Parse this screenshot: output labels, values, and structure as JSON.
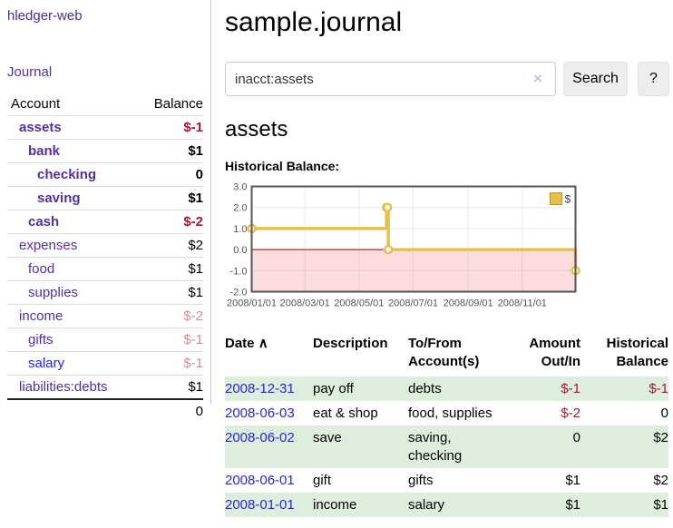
{
  "sidebar": {
    "brand": "hledger-web",
    "nav": {
      "journal": "Journal"
    },
    "accounts_table": {
      "header": {
        "account": "Account",
        "balance": "Balance"
      },
      "rows": [
        {
          "name": "assets",
          "balance": "$-1"
        },
        {
          "name": "bank",
          "balance": "$1"
        },
        {
          "name": "checking",
          "balance": "0"
        },
        {
          "name": "saving",
          "balance": "$1"
        },
        {
          "name": "cash",
          "balance": "$-2"
        },
        {
          "name": "expenses",
          "balance": "$2"
        },
        {
          "name": "food",
          "balance": "$1"
        },
        {
          "name": "supplies",
          "balance": "$1"
        },
        {
          "name": "income",
          "balance": "$-2"
        },
        {
          "name": "gifts",
          "balance": "$-1"
        },
        {
          "name": "salary",
          "balance": "$-1"
        },
        {
          "name": "liabilities:debts",
          "balance": "$1"
        }
      ],
      "total": "0"
    }
  },
  "main": {
    "title": "sample.journal",
    "search": {
      "query": "inacct:assets",
      "clear_icon": "×",
      "search_button": "Search",
      "help_button": "?"
    },
    "account_heading": "assets",
    "chart_title": "Historical Balance:"
  },
  "chart_data": {
    "type": "line",
    "step": true,
    "title": "Historical Balance",
    "series": [
      {
        "name": "$",
        "color": "#e7c04a",
        "points": [
          {
            "date": "2008-01-01",
            "day": 0,
            "value": 1
          },
          {
            "date": "2008-06-01",
            "day": 152,
            "value": 2
          },
          {
            "date": "2008-06-02",
            "day": 153,
            "value": 2
          },
          {
            "date": "2008-06-03",
            "day": 154,
            "value": 0
          },
          {
            "date": "2008-12-31",
            "day": 365,
            "value": -1
          }
        ]
      }
    ],
    "x_axis": {
      "range_days": [
        0,
        365
      ],
      "ticks": [
        {
          "day": 0,
          "label": "2008/01/01"
        },
        {
          "day": 60,
          "label": "2008/03/01"
        },
        {
          "day": 121,
          "label": "2008/05/01"
        },
        {
          "day": 182,
          "label": "2008/07/01"
        },
        {
          "day": 244,
          "label": "2008/09/01"
        },
        {
          "day": 305,
          "label": "2008/11/01"
        }
      ]
    },
    "y_axis": {
      "min": -2,
      "max": 3,
      "ticks": [
        {
          "value": 3,
          "label": "3.0"
        },
        {
          "value": 2,
          "label": "2.0"
        },
        {
          "value": 1,
          "label": "1.0"
        },
        {
          "value": 0,
          "label": "0.0"
        },
        {
          "value": -1,
          "label": "-1.0"
        },
        {
          "value": -2,
          "label": "-2.0"
        }
      ]
    },
    "legend": {
      "label": "$",
      "position": "top-right"
    },
    "colors": {
      "negative_region": "#fcdcdc",
      "zero_line": "#8b0000",
      "grid": "rgba(0,0,0,0.08)",
      "border": "#545454",
      "marker_fill": "#ffffff"
    }
  },
  "register": {
    "headers": {
      "date": "Date",
      "sort": "∧",
      "description": "Description",
      "accounts": "To/From Account(s)",
      "amount": "Amount Out/In",
      "balance": "Historical Balance"
    },
    "rows": [
      {
        "date": "2008-12-31",
        "description": "pay off",
        "accounts": "debts",
        "amount": "$-1",
        "balance": "$-1"
      },
      {
        "date": "2008-06-03",
        "description": "eat & shop",
        "accounts": "food, supplies",
        "amount": "$-2",
        "balance": "0"
      },
      {
        "date": "2008-06-02",
        "description": "save",
        "accounts": "saving, checking",
        "amount": "0",
        "balance": "$2"
      },
      {
        "date": "2008-06-01",
        "description": "gift",
        "accounts": "gifts",
        "amount": "$1",
        "balance": "$2"
      },
      {
        "date": "2008-01-01",
        "description": "income",
        "accounts": "salary",
        "amount": "$1",
        "balance": "$1"
      }
    ]
  },
  "colors": {
    "purple_link": "#53319c",
    "blue_link": "#2727d4",
    "negative_strong": "#9e1b30",
    "negative_pale": "#c69094",
    "row_stripe_green": "#ddeedd"
  }
}
